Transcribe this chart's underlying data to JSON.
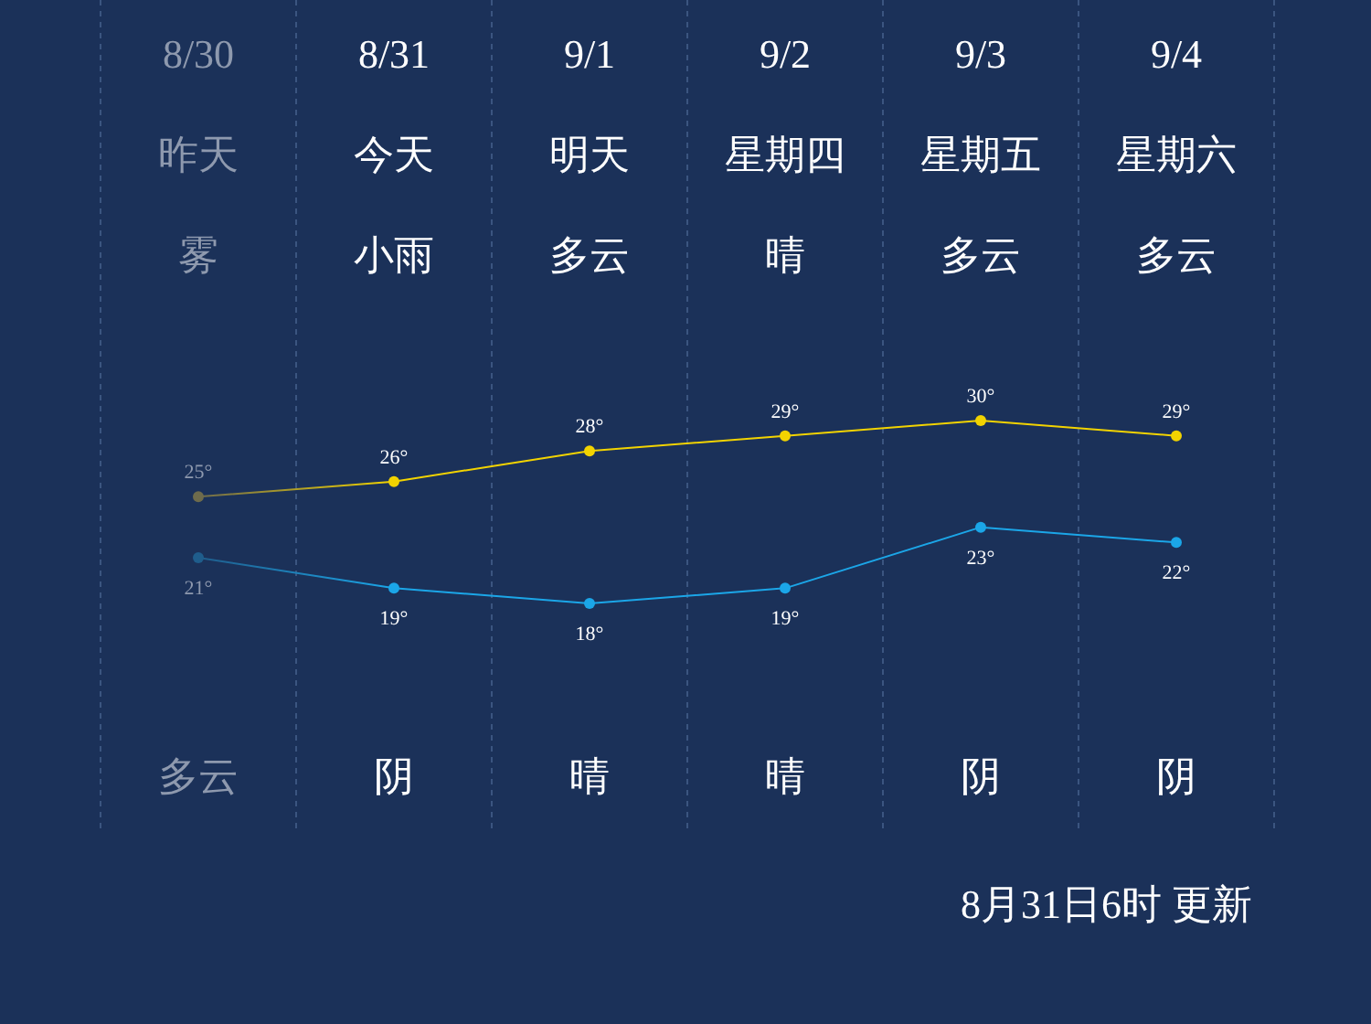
{
  "chart_data": {
    "type": "line",
    "categories": [
      "8/30",
      "8/31",
      "9/1",
      "9/2",
      "9/3",
      "9/4"
    ],
    "series": [
      {
        "color": "#f2d300",
        "colors": [
          "#6e6b4c",
          "#f2d300",
          "#f2d300",
          "#f2d300",
          "#f2d300",
          "#f2d300"
        ],
        "values": [
          25,
          26,
          28,
          29,
          30,
          29
        ],
        "value_labels": [
          "25°",
          "26°",
          "28°",
          "29°",
          "30°",
          "29°"
        ]
      },
      {
        "color": "#1ba6e8",
        "colors": [
          "#1f5d8c",
          "#1ba6e8",
          "#1ba6e8",
          "#1ba6e8",
          "#1ba6e8",
          "#1ba6e8"
        ],
        "values": [
          21,
          19,
          18,
          19,
          23,
          22
        ],
        "value_labels": [
          "21°",
          "19°",
          "18°",
          "19°",
          "23°",
          "22°"
        ]
      }
    ],
    "marker": "circle",
    "grid": "x",
    "annotations": [
      "昨天",
      "今天",
      "明天",
      "星期四",
      "星期五",
      "星期六",
      "雾",
      "小雨",
      "多云",
      "晴",
      "多云",
      "多云",
      "多云",
      "阴",
      "晴",
      "晴",
      "阴",
      "阴",
      "8月31日6时 更新"
    ]
  }
}
